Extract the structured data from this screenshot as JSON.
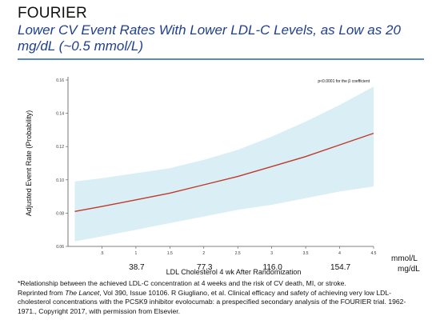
{
  "slide": {
    "title": "FOURIER",
    "subtitle": "Lower CV Event Rates With Lower LDL-C Levels, as Low as 20 mg/dL (~0.5 mmol/L)"
  },
  "footnote": {
    "line1": "*Relationship between the achieved LDL-C concentration at 4 weeks and the risk of CV death, MI, or stroke.",
    "reprinted_prefix": "Reprinted from ",
    "journal": "The Lancet",
    "citation_rest": ", Vol 390, Issue 10106. R Giugliano, et al. Clinical efficacy and safety of achieving very low LDL-cholesterol concentrations with the PCSK9 inhibitor evolocumab: a prespecified secondary analysis of the FOURIER trial.  1962-1971., Copyright 2017, with permission from Elsevier."
  },
  "chart_data": {
    "type": "line",
    "xlabel": "LDL Cholesterol 4 wk After Randomization",
    "ylabel": "Adjusted Event Rate (Probability)",
    "annotation": "p<0.0001 for the β coefficient",
    "xlim": [
      0,
      4.5
    ],
    "ylim": [
      0.06,
      0.16
    ],
    "x_ticks": [
      0.5,
      1,
      1.5,
      2,
      2.5,
      3,
      3.5,
      4,
      4.5
    ],
    "x_tick_labels": [
      ".5",
      "1",
      "1.5",
      "2",
      "2.5",
      "3",
      "3.5",
      "4",
      "4.5"
    ],
    "y_ticks": [
      0.06,
      0.08,
      0.1,
      0.12,
      0.14,
      0.16
    ],
    "y_tick_labels": [
      "0.06",
      "0.08",
      "0.10",
      "0.12",
      "0.14",
      "0.16"
    ],
    "secondary_x_ticks": [
      1,
      2,
      3,
      4
    ],
    "secondary_x_tick_labels": [
      "38.7",
      "77.3",
      "116.0",
      "154.7"
    ],
    "unit_mmol": "mmol/L",
    "unit_mg": "mg/dL",
    "series": [
      {
        "role": "estimate",
        "x": [
          0.1,
          0.5,
          1,
          1.5,
          2,
          2.5,
          3,
          3.5,
          4,
          4.5
        ],
        "y": [
          0.081,
          0.084,
          0.088,
          0.092,
          0.097,
          0.102,
          0.108,
          0.114,
          0.121,
          0.128
        ]
      },
      {
        "role": "ci_upper",
        "x": [
          0.1,
          0.5,
          1,
          1.5,
          2,
          2.5,
          3,
          3.5,
          4,
          4.5
        ],
        "y": [
          0.099,
          0.101,
          0.104,
          0.107,
          0.112,
          0.118,
          0.126,
          0.135,
          0.145,
          0.156
        ]
      },
      {
        "role": "ci_lower",
        "x": [
          0.1,
          0.5,
          1,
          1.5,
          2,
          2.5,
          3,
          3.5,
          4,
          4.5
        ],
        "y": [
          0.063,
          0.066,
          0.07,
          0.074,
          0.078,
          0.082,
          0.085,
          0.089,
          0.093,
          0.096
        ]
      }
    ],
    "colors": {
      "line": "#c0392b",
      "band": "#d9eef5",
      "axis": "#555555"
    }
  }
}
